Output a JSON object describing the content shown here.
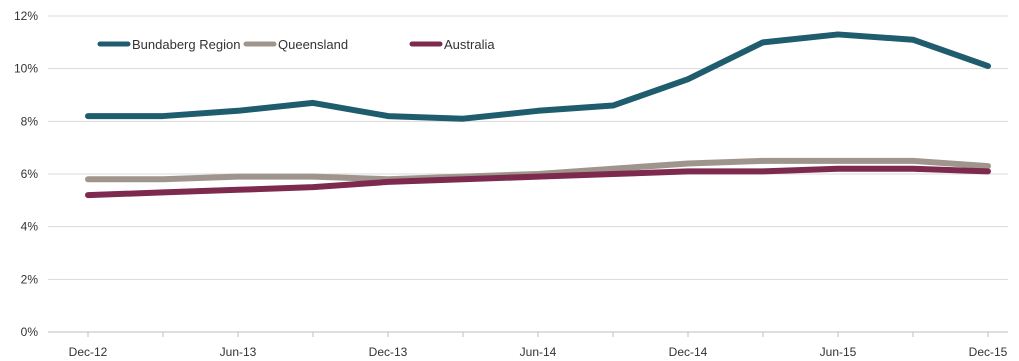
{
  "chart_data": {
    "type": "line",
    "title": "",
    "xlabel": "",
    "ylabel": "",
    "ylim": [
      0,
      12
    ],
    "y_ticks": [
      "0%",
      "2%",
      "4%",
      "6%",
      "8%",
      "10%",
      "12%"
    ],
    "y_tick_values": [
      0,
      2,
      4,
      6,
      8,
      10,
      12
    ],
    "categories": [
      "Dec-12",
      "Mar-13",
      "Jun-13",
      "Sep-13",
      "Dec-13",
      "Mar-14",
      "Jun-14",
      "Sep-14",
      "Dec-14",
      "Mar-15",
      "Jun-15",
      "Sep-15",
      "Dec-15"
    ],
    "x_tick_labels": [
      "Dec-12",
      "",
      "Jun-13",
      "",
      "Dec-13",
      "",
      "Jun-14",
      "",
      "Dec-14",
      "",
      "Jun-15",
      "",
      "Dec-15"
    ],
    "grid": true,
    "legend_position": "top-left",
    "series": [
      {
        "name": "Bundaberg Region",
        "color": "#1f5c6e",
        "values": [
          8.2,
          8.2,
          8.4,
          8.7,
          8.2,
          8.1,
          8.4,
          8.6,
          9.6,
          11.0,
          11.3,
          11.1,
          10.1
        ]
      },
      {
        "name": "Queensland",
        "color": "#a0958c",
        "values": [
          5.8,
          5.8,
          5.9,
          5.9,
          5.8,
          5.9,
          6.0,
          6.2,
          6.4,
          6.5,
          6.5,
          6.5,
          6.3
        ]
      },
      {
        "name": "Australia",
        "color": "#7d2a4e",
        "values": [
          5.2,
          5.3,
          5.4,
          5.5,
          5.7,
          5.8,
          5.9,
          6.0,
          6.1,
          6.1,
          6.2,
          6.2,
          6.1
        ]
      }
    ]
  }
}
